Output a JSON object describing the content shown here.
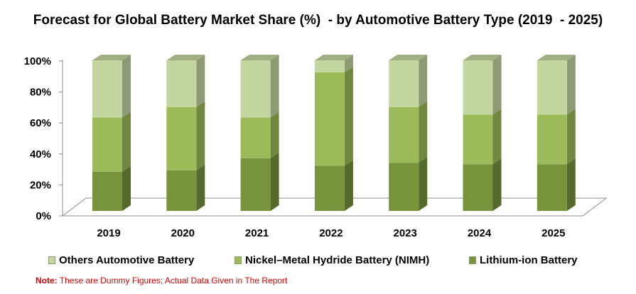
{
  "title": "Forecast for Global Battery Market Share (%)  - by Automotive Battery Type (2019  - 2025)",
  "note": {
    "label": "Note:",
    "text": " These are Dummy Figures; Actual Data Given in The Report"
  },
  "colors": {
    "lithium": "#77933c",
    "nimh": "#9bbb59",
    "others": "#c4d6a0"
  },
  "chart_data": {
    "type": "bar",
    "stacked": true,
    "style": "3d",
    "title": "Forecast for Global Battery Market Share (%)  - by Automotive Battery Type (2019  - 2025)",
    "categories": [
      "2019",
      "2020",
      "2021",
      "2022",
      "2023",
      "2024",
      "2025"
    ],
    "y_ticks": [
      "0%",
      "20%",
      "40%",
      "60%",
      "80%",
      "100%"
    ],
    "ylim": [
      0,
      100
    ],
    "grid": false,
    "legend_position": "bottom",
    "series": [
      {
        "name": "Lithium-ion Battery",
        "color": "#77933c",
        "values": [
          26,
          27,
          35,
          30,
          32,
          31,
          31
        ]
      },
      {
        "name": "Nickel–Metal Hydride Battery (NIMH)",
        "color": "#9bbb59",
        "values": [
          36,
          42,
          27,
          62,
          37,
          33,
          33
        ]
      },
      {
        "name": "Others Automotive Battery",
        "color": "#c4d6a0",
        "values": [
          38,
          31,
          38,
          8,
          31,
          36,
          36
        ]
      }
    ],
    "legend_order": [
      "Others Automotive Battery",
      "Nickel–Metal Hydride Battery (NIMH)",
      "Lithium-ion Battery"
    ]
  }
}
